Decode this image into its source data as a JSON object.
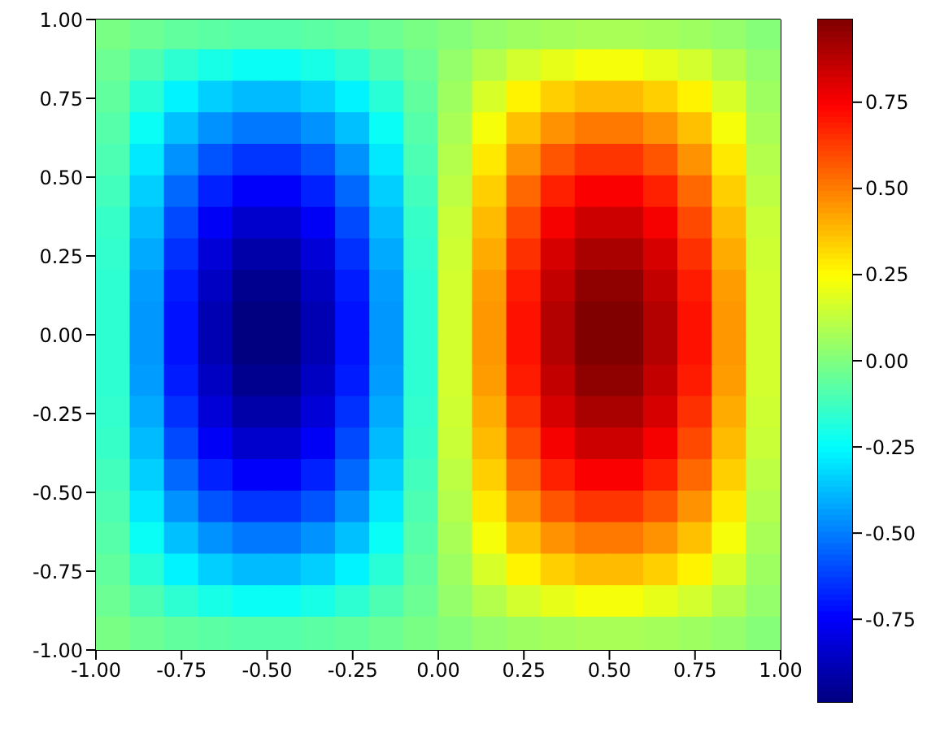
{
  "chart_data": {
    "type": "heatmap",
    "xlim": [
      -1,
      1
    ],
    "ylim": [
      -1,
      1
    ],
    "xticks": [
      {
        "value": -1,
        "label": "-1.00"
      },
      {
        "value": -0.75,
        "label": "-0.75"
      },
      {
        "value": -0.5,
        "label": "-0.50"
      },
      {
        "value": -0.25,
        "label": "-0.25"
      },
      {
        "value": 0,
        "label": "0.00"
      },
      {
        "value": 0.25,
        "label": "0.25"
      },
      {
        "value": 0.5,
        "label": "0.50"
      },
      {
        "value": 0.75,
        "label": "0.75"
      },
      {
        "value": 1,
        "label": "1.00"
      }
    ],
    "yticks": [
      {
        "value": -1,
        "label": "-1.00"
      },
      {
        "value": -0.75,
        "label": "-0.75"
      },
      {
        "value": -0.5,
        "label": "-0.50"
      },
      {
        "value": -0.25,
        "label": "-0.25"
      },
      {
        "value": 0,
        "label": "0.00"
      },
      {
        "value": 0.25,
        "label": "0.25"
      },
      {
        "value": 0.5,
        "label": "0.50"
      },
      {
        "value": 0.75,
        "label": "0.75"
      },
      {
        "value": 1,
        "label": "1.00"
      }
    ],
    "clim": [
      -0.99,
      0.99
    ],
    "cticks": [
      {
        "value": -0.75,
        "label": "-0.75"
      },
      {
        "value": -0.5,
        "label": "-0.50"
      },
      {
        "value": -0.25,
        "label": "-0.25"
      },
      {
        "value": 0,
        "label": "0.00"
      },
      {
        "value": 0.25,
        "label": "0.25"
      },
      {
        "value": 0.5,
        "label": "0.50"
      },
      {
        "value": 0.75,
        "label": "0.75"
      }
    ],
    "cells": [
      [
        -0.01,
        -0.04,
        -0.06,
        -0.07,
        -0.08,
        -0.08,
        -0.07,
        -0.06,
        -0.04,
        -0.01,
        0.01,
        0.04,
        0.06,
        0.07,
        0.08,
        0.08,
        0.07,
        0.06,
        0.04,
        0.01
      ],
      [
        -0.04,
        -0.1,
        -0.16,
        -0.2,
        -0.23,
        -0.23,
        -0.2,
        -0.16,
        -0.1,
        -0.04,
        0.04,
        0.1,
        0.16,
        0.2,
        0.23,
        0.23,
        0.2,
        0.16,
        0.1,
        0.04
      ],
      [
        -0.06,
        -0.17,
        -0.27,
        -0.34,
        -0.38,
        -0.38,
        -0.34,
        -0.27,
        -0.17,
        -0.06,
        0.06,
        0.17,
        0.27,
        0.34,
        0.38,
        0.38,
        0.34,
        0.27,
        0.17,
        0.06
      ],
      [
        -0.08,
        -0.23,
        -0.37,
        -0.46,
        -0.51,
        -0.51,
        -0.46,
        -0.37,
        -0.23,
        -0.08,
        0.08,
        0.23,
        0.37,
        0.46,
        0.51,
        0.51,
        0.46,
        0.37,
        0.23,
        0.08
      ],
      [
        -0.1,
        -0.29,
        -0.46,
        -0.58,
        -0.64,
        -0.64,
        -0.58,
        -0.46,
        -0.29,
        -0.1,
        0.1,
        0.29,
        0.46,
        0.58,
        0.64,
        0.64,
        0.58,
        0.46,
        0.29,
        0.1
      ],
      [
        -0.12,
        -0.34,
        -0.54,
        -0.68,
        -0.75,
        -0.75,
        -0.68,
        -0.54,
        -0.34,
        -0.12,
        0.12,
        0.34,
        0.54,
        0.68,
        0.75,
        0.75,
        0.68,
        0.54,
        0.34,
        0.12
      ],
      [
        -0.14,
        -0.38,
        -0.6,
        -0.76,
        -0.84,
        -0.84,
        -0.76,
        -0.6,
        -0.38,
        -0.14,
        0.14,
        0.38,
        0.6,
        0.76,
        0.84,
        0.84,
        0.76,
        0.6,
        0.38,
        0.14
      ],
      [
        -0.15,
        -0.41,
        -0.65,
        -0.82,
        -0.91,
        -0.91,
        -0.82,
        -0.65,
        -0.41,
        -0.15,
        0.15,
        0.41,
        0.65,
        0.82,
        0.91,
        0.91,
        0.82,
        0.65,
        0.41,
        0.15
      ],
      [
        -0.16,
        -0.44,
        -0.69,
        -0.86,
        -0.96,
        -0.96,
        -0.86,
        -0.69,
        -0.44,
        -0.16,
        0.16,
        0.44,
        0.69,
        0.86,
        0.96,
        0.96,
        0.86,
        0.69,
        0.44,
        0.16
      ],
      [
        -0.16,
        -0.45,
        -0.71,
        -0.89,
        -0.99,
        -0.99,
        -0.89,
        -0.71,
        -0.45,
        -0.16,
        0.16,
        0.45,
        0.71,
        0.89,
        0.99,
        0.99,
        0.89,
        0.71,
        0.45,
        0.16
      ],
      [
        -0.16,
        -0.45,
        -0.71,
        -0.89,
        -0.99,
        -0.99,
        -0.89,
        -0.71,
        -0.45,
        -0.16,
        0.16,
        0.45,
        0.71,
        0.89,
        0.99,
        0.99,
        0.89,
        0.71,
        0.45,
        0.16
      ],
      [
        -0.16,
        -0.44,
        -0.69,
        -0.86,
        -0.96,
        -0.96,
        -0.86,
        -0.69,
        -0.44,
        -0.16,
        0.16,
        0.44,
        0.69,
        0.86,
        0.96,
        0.96,
        0.86,
        0.69,
        0.44,
        0.16
      ],
      [
        -0.15,
        -0.41,
        -0.65,
        -0.82,
        -0.91,
        -0.91,
        -0.82,
        -0.65,
        -0.41,
        -0.15,
        0.15,
        0.41,
        0.65,
        0.82,
        0.91,
        0.91,
        0.82,
        0.65,
        0.41,
        0.15
      ],
      [
        -0.14,
        -0.38,
        -0.6,
        -0.76,
        -0.84,
        -0.84,
        -0.76,
        -0.6,
        -0.38,
        -0.14,
        0.14,
        0.38,
        0.6,
        0.76,
        0.84,
        0.84,
        0.76,
        0.6,
        0.38,
        0.14
      ],
      [
        -0.12,
        -0.34,
        -0.54,
        -0.68,
        -0.75,
        -0.75,
        -0.68,
        -0.54,
        -0.34,
        -0.12,
        0.12,
        0.34,
        0.54,
        0.68,
        0.75,
        0.75,
        0.68,
        0.54,
        0.34,
        0.12
      ],
      [
        -0.1,
        -0.29,
        -0.46,
        -0.58,
        -0.64,
        -0.64,
        -0.58,
        -0.46,
        -0.29,
        -0.1,
        0.1,
        0.29,
        0.46,
        0.58,
        0.64,
        0.64,
        0.58,
        0.46,
        0.29,
        0.1
      ],
      [
        -0.08,
        -0.23,
        -0.37,
        -0.46,
        -0.51,
        -0.51,
        -0.46,
        -0.37,
        -0.23,
        -0.08,
        0.08,
        0.23,
        0.37,
        0.46,
        0.51,
        0.51,
        0.46,
        0.37,
        0.23,
        0.08
      ],
      [
        -0.06,
        -0.17,
        -0.27,
        -0.34,
        -0.38,
        -0.38,
        -0.34,
        -0.27,
        -0.17,
        -0.06,
        0.06,
        0.17,
        0.27,
        0.34,
        0.38,
        0.38,
        0.34,
        0.27,
        0.17,
        0.06
      ],
      [
        -0.04,
        -0.1,
        -0.16,
        -0.2,
        -0.23,
        -0.23,
        -0.2,
        -0.16,
        -0.1,
        -0.04,
        0.04,
        0.1,
        0.16,
        0.2,
        0.23,
        0.23,
        0.2,
        0.16,
        0.1,
        0.04
      ],
      [
        -0.01,
        -0.04,
        -0.06,
        -0.07,
        -0.08,
        -0.08,
        -0.07,
        -0.06,
        -0.04,
        -0.01,
        0.01,
        0.04,
        0.06,
        0.07,
        0.08,
        0.08,
        0.07,
        0.06,
        0.04,
        0.01
      ]
    ]
  }
}
